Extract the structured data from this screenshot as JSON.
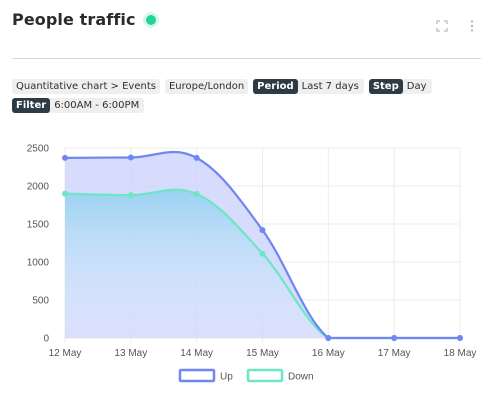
{
  "header": {
    "title": "People traffic",
    "status_color": "#23d39b",
    "icons": [
      "fullscreen-icon",
      "more-vertical-icon"
    ]
  },
  "filters": {
    "breadcrumb": "Quantitative chart > Events",
    "timezone": "Europe/London",
    "period_tag": "Period",
    "period_value": "Last 7 days",
    "step_tag": "Step",
    "step_value": "Day",
    "filter_tag": "Filter",
    "filter_value": "6:00AM - 6:00PM"
  },
  "chart_data": {
    "type": "line",
    "categories": [
      "12 May",
      "13 May",
      "14 May",
      "15 May",
      "16 May",
      "17 May",
      "18 May"
    ],
    "series": [
      {
        "name": "Up",
        "values": [
          2370,
          2375,
          2370,
          1420,
          0,
          0,
          0
        ],
        "color": "#6f86f4"
      },
      {
        "name": "Down",
        "values": [
          1900,
          1880,
          1895,
          1110,
          0,
          0,
          0
        ],
        "color": "#6ee6c4"
      }
    ],
    "ylim": [
      0,
      2500
    ],
    "yticks": [
      "0",
      "500",
      "1000",
      "1500",
      "2000",
      "2500"
    ],
    "grid": true,
    "legend": "bottom-center"
  }
}
